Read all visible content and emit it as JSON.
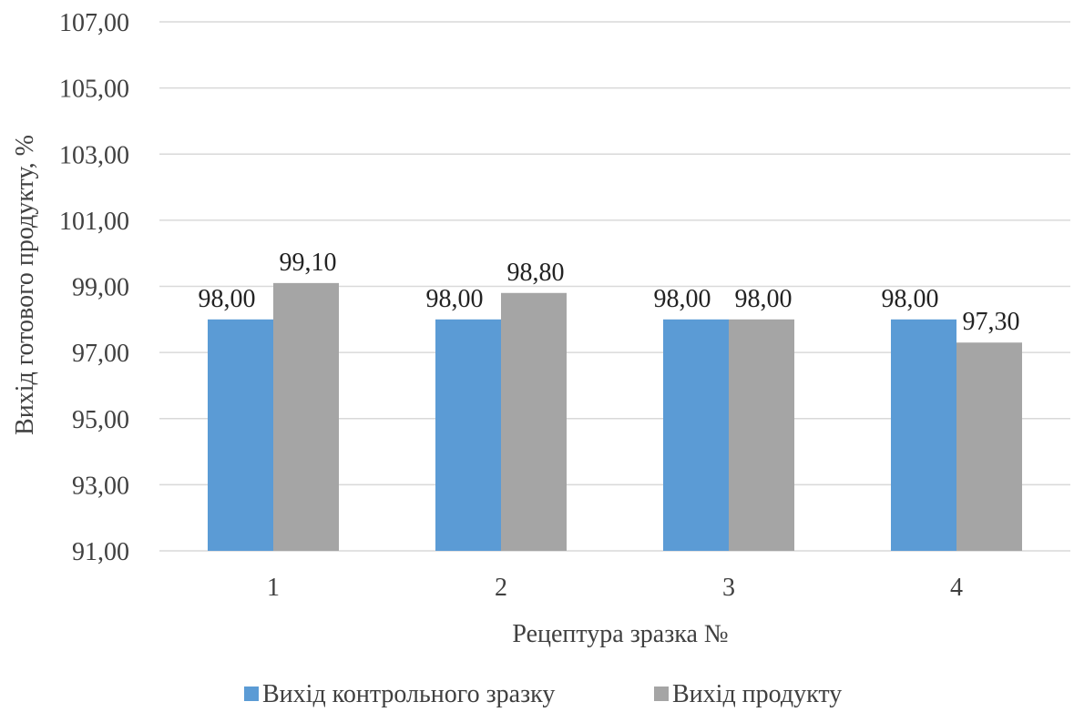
{
  "chart_data": {
    "type": "bar",
    "categories": [
      "1",
      "2",
      "3",
      "4"
    ],
    "series": [
      {
        "name": "Вихід контрольного зразку",
        "values": [
          98.0,
          98.0,
          98.0,
          98.0
        ],
        "color": "#5b9bd5",
        "labels": [
          "98,00",
          "98,00",
          "98,00",
          "98,00"
        ]
      },
      {
        "name": "Вихід продукту",
        "values": [
          99.1,
          98.8,
          98.0,
          97.3
        ],
        "color": "#a5a5a5",
        "labels": [
          "99,10",
          "98,80",
          "98,00",
          "97,30"
        ]
      }
    ],
    "xlabel": "Рецептура зразка №",
    "ylabel": "Вихід готового продукту, %",
    "ylim": [
      91,
      107
    ],
    "yticks": [
      91,
      93,
      95,
      97,
      99,
      101,
      103,
      105,
      107
    ],
    "ytick_labels": [
      "91,00",
      "93,00",
      "95,00",
      "97,00",
      "99,00",
      "101,00",
      "103,00",
      "105,00",
      "107,00"
    ],
    "grid": true,
    "legend_position": "bottom"
  }
}
